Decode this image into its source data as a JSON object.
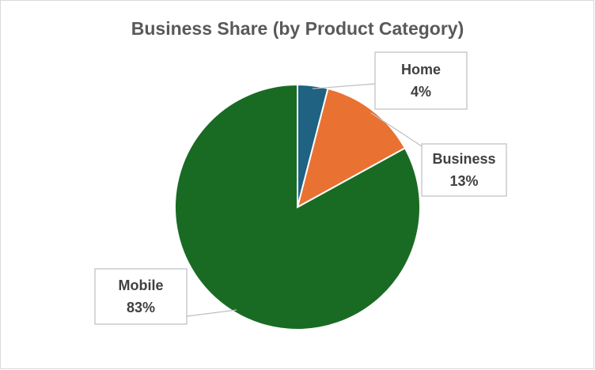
{
  "chart_data": {
    "type": "pie",
    "title": "Business Share (by Product Category)",
    "categories": [
      "Home",
      "Business",
      "Mobile"
    ],
    "values": [
      4,
      13,
      83
    ],
    "value_labels": [
      "4%",
      "13%",
      "83%"
    ],
    "colors": [
      "#1f6282",
      "#e97132",
      "#196b24"
    ]
  }
}
